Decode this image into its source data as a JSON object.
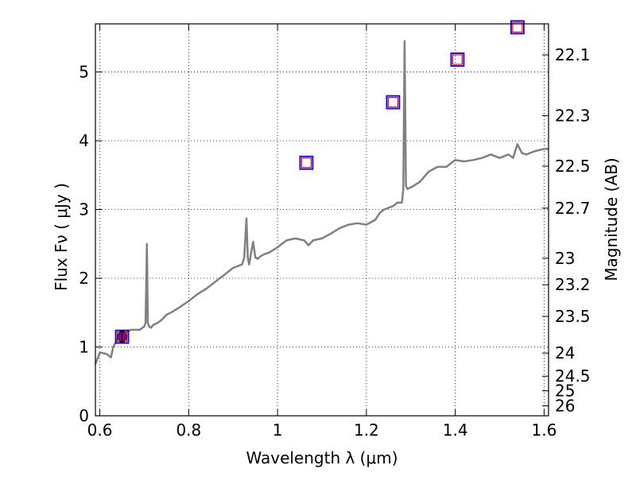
{
  "chart_data": {
    "type": "line",
    "xlabel": "Wavelength  λ (μm)",
    "ylabel": "Flux  Fν  ( μJy )",
    "y2label": "Magnitude (AB)",
    "xlim": [
      0.59,
      1.61
    ],
    "ylim": [
      0,
      5.7
    ],
    "grid": true,
    "x_ticks": [
      0.6,
      0.8,
      1.0,
      1.2,
      1.4,
      1.6
    ],
    "x_tick_labels": [
      "0.6",
      "0.8",
      "1",
      "1.2",
      "1.4",
      "1.6"
    ],
    "y_ticks": [
      0,
      1,
      2,
      3,
      4,
      5
    ],
    "y_tick_labels": [
      "0",
      "1",
      "2",
      "3",
      "4",
      "5"
    ],
    "y2_ticks": [
      22.1,
      22.3,
      22.5,
      22.7,
      23,
      23.2,
      23.5,
      24,
      24.5,
      25,
      26
    ],
    "y2_tick_labels": [
      "22.1",
      "22.3",
      "22.5",
      "22.7",
      "23",
      "23.2",
      "23.5",
      "24",
      "24.5",
      "25",
      "26"
    ],
    "spectrum": {
      "color": "#808080",
      "x": [
        0.59,
        0.6,
        0.615,
        0.625,
        0.63,
        0.64,
        0.65,
        0.66,
        0.67,
        0.68,
        0.69,
        0.7,
        0.703,
        0.706,
        0.708,
        0.711,
        0.715,
        0.72,
        0.73,
        0.74,
        0.75,
        0.76,
        0.78,
        0.8,
        0.82,
        0.84,
        0.86,
        0.88,
        0.9,
        0.92,
        0.925,
        0.93,
        0.933,
        0.936,
        0.94,
        0.945,
        0.95,
        0.952,
        0.955,
        0.958,
        0.962,
        0.97,
        0.98,
        1.0,
        1.02,
        1.04,
        1.06,
        1.07,
        1.08,
        1.1,
        1.12,
        1.14,
        1.16,
        1.18,
        1.2,
        1.22,
        1.23,
        1.24,
        1.26,
        1.27,
        1.28,
        1.283,
        1.286,
        1.289,
        1.292,
        1.3,
        1.32,
        1.34,
        1.36,
        1.38,
        1.4,
        1.42,
        1.44,
        1.46,
        1.48,
        1.5,
        1.52,
        1.53,
        1.535,
        1.54,
        1.55,
        1.56,
        1.58,
        1.6,
        1.61
      ],
      "y": [
        0.75,
        0.92,
        0.9,
        0.85,
        1.0,
        1.12,
        1.2,
        1.22,
        1.25,
        1.25,
        1.25,
        1.3,
        1.35,
        2.5,
        1.35,
        1.3,
        1.28,
        1.32,
        1.35,
        1.4,
        1.47,
        1.5,
        1.58,
        1.67,
        1.77,
        1.85,
        1.95,
        2.05,
        2.15,
        2.2,
        2.3,
        2.87,
        2.3,
        2.2,
        2.35,
        2.53,
        2.3,
        2.3,
        2.28,
        2.3,
        2.32,
        2.35,
        2.37,
        2.45,
        2.55,
        2.58,
        2.55,
        2.48,
        2.55,
        2.58,
        2.65,
        2.73,
        2.78,
        2.8,
        2.78,
        2.85,
        2.95,
        3.0,
        3.05,
        3.1,
        3.1,
        3.3,
        5.45,
        3.35,
        3.3,
        3.32,
        3.4,
        3.55,
        3.62,
        3.62,
        3.72,
        3.7,
        3.72,
        3.75,
        3.8,
        3.75,
        3.8,
        3.75,
        3.85,
        3.95,
        3.82,
        3.8,
        3.85,
        3.88,
        3.88
      ]
    },
    "photometry_observed": {
      "color": "#0000ff",
      "x": [
        0.65,
        1.065,
        1.26,
        1.405,
        1.54
      ],
      "y": [
        1.15,
        3.68,
        4.56,
        5.18,
        5.65
      ]
    },
    "photometry_model": {
      "color": "#ff0000",
      "x": [
        0.65,
        1.065,
        1.26,
        1.405,
        1.54
      ],
      "y": [
        1.15,
        3.68,
        4.56,
        5.18,
        5.65
      ]
    },
    "measured_point": {
      "color": "#8b008b",
      "x": 0.65,
      "y": 1.15,
      "yerr": 0.08
    }
  }
}
